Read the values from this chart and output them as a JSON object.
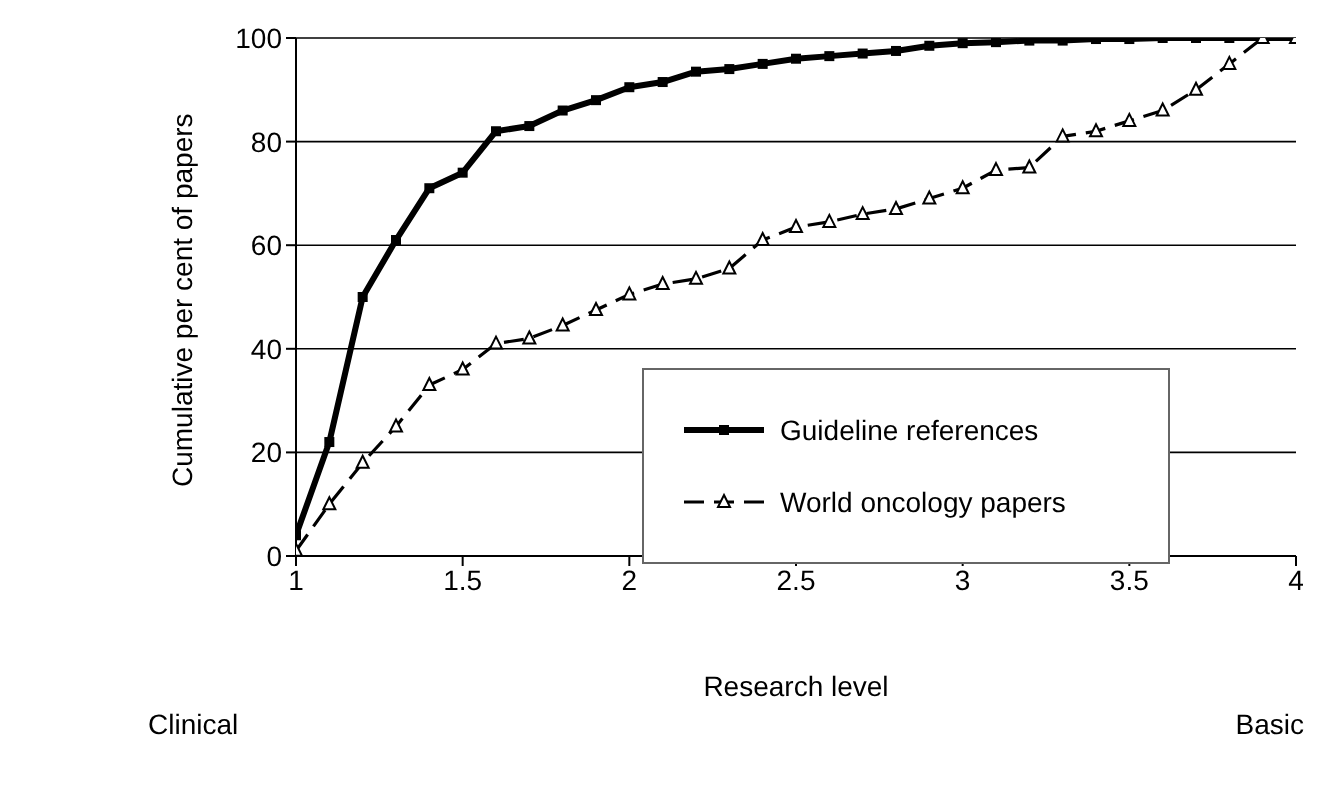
{
  "chart_data": {
    "type": "line",
    "xlabel": "Research level",
    "ylabel": "Cumulative per cent of papers",
    "x": [
      1,
      1.1,
      1.2,
      1.3,
      1.4,
      1.5,
      1.6,
      1.7,
      1.8,
      1.9,
      2,
      2.1,
      2.2,
      2.3,
      2.4,
      2.5,
      2.6,
      2.7,
      2.8,
      2.9,
      3,
      3.1,
      3.2,
      3.3,
      3.4,
      3.5,
      3.6,
      3.7,
      3.8,
      3.9,
      4
    ],
    "series": [
      {
        "name": "Guideline references",
        "color": "#000000",
        "marker": "square",
        "line_style": "solid",
        "values": [
          4,
          22,
          50,
          61,
          71,
          74,
          82,
          83,
          86,
          88,
          90.5,
          91.5,
          93.5,
          94,
          95,
          96,
          96.5,
          97,
          97.5,
          98.5,
          99,
          99.2,
          99.5,
          99.5,
          99.8,
          99.8,
          100,
          100,
          100,
          100,
          100
        ]
      },
      {
        "name": "World oncology papers",
        "color": "#000000",
        "marker": "triangle",
        "line_style": "dashed",
        "values": [
          1,
          10,
          18,
          25,
          33,
          36,
          41,
          42,
          44.5,
          47.5,
          50.5,
          52.5,
          53.5,
          55.5,
          61,
          63.5,
          64.5,
          66,
          67,
          69,
          71,
          74.5,
          75,
          81,
          82,
          84,
          86,
          90,
          95,
          100,
          100
        ]
      }
    ],
    "xlim": [
      1,
      4
    ],
    "xticks": [
      1,
      1.5,
      2,
      2.5,
      3,
      3.5,
      4
    ],
    "ylim": [
      0,
      100
    ],
    "yticks": [
      0,
      20,
      40,
      60,
      80,
      100
    ],
    "grid": "y",
    "legend": "right",
    "annotations": [
      "Clinical",
      "Basic"
    ]
  }
}
